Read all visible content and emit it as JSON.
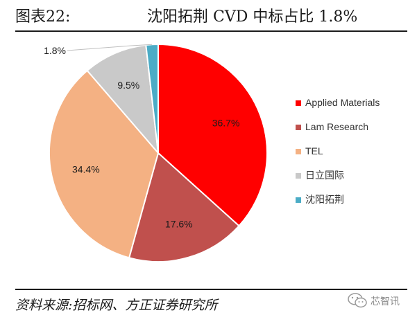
{
  "header": {
    "figure_number": "图表22:",
    "title": "沈阳拓荆 CVD 中标占比 1.8%"
  },
  "footer": {
    "source": "资料来源:招标网、方正证券研究所",
    "watermark": "芯智讯"
  },
  "chart_data": {
    "type": "pie",
    "title": "沈阳拓荆 CVD 中标占比 1.8%",
    "legend_position": "right",
    "slices": [
      {
        "label": "Applied Materials",
        "value": 36.7,
        "display": "36.7%",
        "color": "#FF0000"
      },
      {
        "label": "Lam Research",
        "value": 17.6,
        "display": "17.6%",
        "color": "#C0504D"
      },
      {
        "label": "TEL",
        "value": 34.4,
        "display": "34.4%",
        "color": "#F4B183"
      },
      {
        "label": "日立国际",
        "value": 9.5,
        "display": "9.5%",
        "color": "#C9C9C9"
      },
      {
        "label": "沈阳拓荆",
        "value": 1.8,
        "display": "1.8%",
        "color": "#4BACC6"
      }
    ]
  }
}
